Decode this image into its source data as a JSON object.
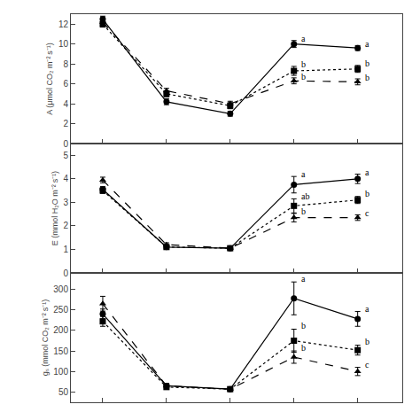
{
  "chart_data": [
    {
      "type": "line",
      "ylabel": "A (μmol CO₂ m⁻² s⁻¹)",
      "x": [
        1,
        2,
        3,
        4,
        5
      ],
      "xlim": [
        0.5,
        5.7
      ],
      "xticks": [
        1,
        2,
        3,
        4,
        5
      ],
      "ylim": [
        0,
        13
      ],
      "yticks": [
        0,
        2,
        4,
        6,
        8,
        10,
        12
      ],
      "tick_labels": "y",
      "grid": false,
      "series": [
        {
          "values": [
            12.5,
            4.2,
            3.0,
            10.0,
            9.6
          ],
          "errors": [
            0.3,
            0.3,
            0.25,
            0.35,
            0.25
          ],
          "marker": "circle",
          "line_style": "solid",
          "color": "black"
        },
        {
          "values": [
            12.0,
            5.0,
            3.8,
            7.3,
            7.5
          ],
          "errors": [
            0.3,
            0.3,
            0.3,
            0.45,
            0.35
          ],
          "marker": "square",
          "line_style": "dotted",
          "color": "black"
        },
        {
          "values": [
            12.2,
            5.3,
            4.0,
            6.3,
            6.2
          ],
          "errors": [
            0.3,
            0.25,
            0.25,
            0.3,
            0.3
          ],
          "marker": "triangle",
          "line_style": "dashed",
          "color": "black"
        }
      ],
      "annotations": [
        {
          "x": 4,
          "y": 10.55,
          "text": "a"
        },
        {
          "x": 4,
          "y": 7.95,
          "text": "b"
        },
        {
          "x": 4,
          "y": 6.75,
          "text": "b"
        },
        {
          "x": 5,
          "y": 10.05,
          "text": "a"
        },
        {
          "x": 5,
          "y": 8.05,
          "text": "b"
        },
        {
          "x": 5,
          "y": 6.65,
          "text": "b"
        }
      ]
    },
    {
      "type": "line",
      "ylabel": "E (mmol H₂O m⁻² s⁻¹)",
      "x": [
        1,
        2,
        3,
        4,
        5
      ],
      "xlim": [
        0.5,
        5.7
      ],
      "xticks": [
        1,
        2,
        3,
        4,
        5
      ],
      "ylim": [
        0,
        5.5
      ],
      "yticks": [
        0,
        1,
        2,
        3,
        4,
        5
      ],
      "tick_labels": "y",
      "grid": false,
      "series": [
        {
          "values": [
            3.55,
            1.1,
            1.05,
            3.75,
            4.0
          ],
          "errors": [
            0.12,
            0.08,
            0.08,
            0.35,
            0.2
          ],
          "marker": "circle",
          "line_style": "solid",
          "color": "black"
        },
        {
          "values": [
            3.5,
            1.1,
            1.05,
            2.85,
            3.1
          ],
          "errors": [
            0.12,
            0.08,
            0.08,
            0.3,
            0.15
          ],
          "marker": "square",
          "line_style": "dotted",
          "color": "black"
        },
        {
          "values": [
            3.95,
            1.2,
            1.05,
            2.35,
            2.35
          ],
          "errors": [
            0.12,
            0.08,
            0.08,
            0.18,
            0.12
          ],
          "marker": "triangle",
          "line_style": "dashed",
          "color": "black"
        }
      ],
      "annotations": [
        {
          "x": 4,
          "y": 4.2,
          "text": "a"
        },
        {
          "x": 4,
          "y": 3.25,
          "text": "ab"
        },
        {
          "x": 4,
          "y": 2.62,
          "text": "b"
        },
        {
          "x": 5,
          "y": 4.28,
          "text": "a"
        },
        {
          "x": 5,
          "y": 3.38,
          "text": "b"
        },
        {
          "x": 5,
          "y": 2.55,
          "text": "c"
        }
      ]
    },
    {
      "type": "line",
      "ylabel": "gₛ (mmol CO₂ m⁻² s⁻¹)",
      "x": [
        1,
        2,
        3,
        4,
        5
      ],
      "xlim": [
        0.5,
        5.7
      ],
      "xticks": [
        1,
        2,
        3,
        4,
        5
      ],
      "ylim": [
        25,
        340
      ],
      "yticks": [
        50,
        100,
        150,
        200,
        250,
        300
      ],
      "tick_labels": "y",
      "grid": false,
      "series": [
        {
          "values": [
            240,
            65,
            57,
            278,
            228
          ],
          "errors": [
            12,
            6,
            5,
            40,
            18
          ],
          "marker": "circle",
          "line_style": "solid",
          "color": "black"
        },
        {
          "values": [
            222,
            62,
            57,
            175,
            152
          ],
          "errors": [
            12,
            5,
            5,
            28,
            12
          ],
          "marker": "square",
          "line_style": "dotted",
          "color": "black"
        },
        {
          "values": [
            265,
            65,
            57,
            135,
            100
          ],
          "errors": [
            18,
            5,
            5,
            15,
            10
          ],
          "marker": "triangle",
          "line_style": "dashed",
          "color": "black"
        }
      ],
      "annotations": [
        {
          "x": 4,
          "y": 325,
          "text": "a"
        },
        {
          "x": 4,
          "y": 212,
          "text": "b"
        },
        {
          "x": 4,
          "y": 158,
          "text": "b"
        },
        {
          "x": 5,
          "y": 253,
          "text": "a"
        },
        {
          "x": 5,
          "y": 172,
          "text": "b"
        },
        {
          "x": 5,
          "y": 116,
          "text": "c"
        }
      ]
    }
  ]
}
